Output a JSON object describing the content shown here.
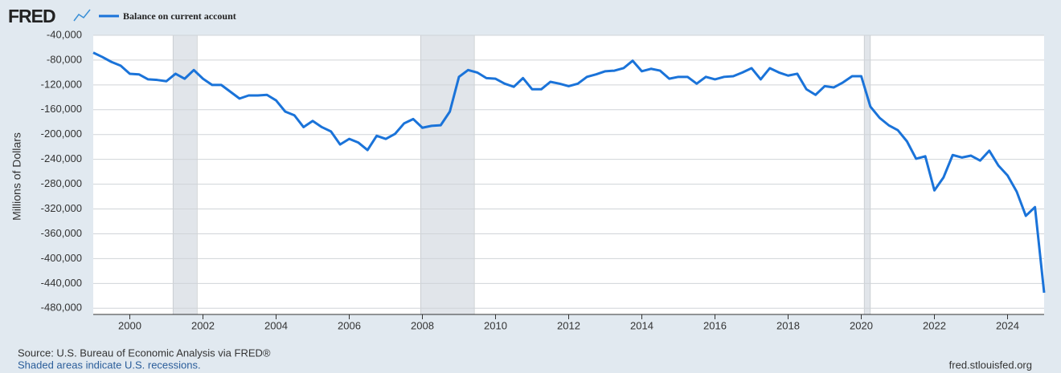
{
  "logo": "FRED",
  "source": "Source: U.S. Bureau of Economic Analysis via FRED®",
  "note": "Shaded areas indicate U.S. recessions.",
  "url": "fred.stlouisfed.org",
  "chart_data": {
    "type": "line",
    "y_label": "Millions of Dollars",
    "xlim": [
      1999,
      2025
    ],
    "xticks": [
      2000,
      2002,
      2004,
      2006,
      2008,
      2010,
      2012,
      2014,
      2016,
      2018,
      2020,
      2022,
      2024
    ],
    "ylim": [
      -490000,
      -40000
    ],
    "yticks": [
      {
        "value": -40000,
        "label": "-40,000"
      },
      {
        "value": -80000,
        "label": "-80,000"
      },
      {
        "value": -120000,
        "label": "-120,000"
      },
      {
        "value": -160000,
        "label": "-160,000"
      },
      {
        "value": -200000,
        "label": "-200,000"
      },
      {
        "value": -240000,
        "label": "-240,000"
      },
      {
        "value": -280000,
        "label": "-280,000"
      },
      {
        "value": -320000,
        "label": "-320,000"
      },
      {
        "value": -360000,
        "label": "-360,000"
      },
      {
        "value": -400000,
        "label": "-400,000"
      },
      {
        "value": -440000,
        "label": "-440,000"
      },
      {
        "value": -480000,
        "label": "-480,000"
      }
    ],
    "grid": true,
    "recessions": [
      [
        2001.18,
        2001.84
      ],
      [
        2007.95,
        2009.42
      ],
      [
        2020.08,
        2020.25
      ]
    ],
    "recession_color": "#e1e5ea",
    "x": [
      1999,
      1999.25,
      1999.5,
      1999.75,
      2000,
      2000.25,
      2000.5,
      2000.75,
      2001,
      2001.25,
      2001.5,
      2001.75,
      2002,
      2002.25,
      2002.5,
      2002.75,
      2003,
      2003.25,
      2003.5,
      2003.75,
      2004,
      2004.25,
      2004.5,
      2004.75,
      2005,
      2005.25,
      2005.5,
      2005.75,
      2006,
      2006.25,
      2006.5,
      2006.75,
      2007,
      2007.25,
      2007.5,
      2007.75,
      2008,
      2008.25,
      2008.5,
      2008.75,
      2009,
      2009.25,
      2009.5,
      2009.75,
      2010,
      2010.25,
      2010.5,
      2010.75,
      2011,
      2011.25,
      2011.5,
      2011.75,
      2012,
      2012.25,
      2012.5,
      2012.75,
      2013,
      2013.25,
      2013.5,
      2013.75,
      2014,
      2014.25,
      2014.5,
      2014.75,
      2015,
      2015.25,
      2015.5,
      2015.75,
      2016,
      2016.25,
      2016.5,
      2016.75,
      2017,
      2017.25,
      2017.5,
      2017.75,
      2018,
      2018.25,
      2018.5,
      2018.75,
      2019,
      2019.25,
      2019.5,
      2019.75,
      2020,
      2020.25,
      2020.5,
      2020.75,
      2021,
      2021.25,
      2021.5,
      2021.75,
      2022,
      2022.25,
      2022.5,
      2022.75,
      2023,
      2023.25,
      2023.5,
      2023.75,
      2024,
      2024.25,
      2024.5,
      2024.75,
      2025
    ],
    "series": [
      {
        "name": "Balance on current account",
        "color": "#1a73d9",
        "values": [
          -68000,
          -75000,
          -83000,
          -89000,
          -102000,
          -103000,
          -111000,
          -112000,
          -114000,
          -102000,
          -110000,
          -96000,
          -110000,
          -120000,
          -120000,
          -131000,
          -142000,
          -137000,
          -137000,
          -136000,
          -145000,
          -163000,
          -169000,
          -188000,
          -178000,
          -188000,
          -195000,
          -216000,
          -207000,
          -213000,
          -225000,
          -202000,
          -207000,
          -199000,
          -182000,
          -175000,
          -189000,
          -186000,
          -185000,
          -163000,
          -107000,
          -96000,
          -100000,
          -109000,
          -110000,
          -118000,
          -123000,
          -109000,
          -127000,
          -127000,
          -115000,
          -118000,
          -122000,
          -118000,
          -107000,
          -103000,
          -98000,
          -97000,
          -93000,
          -81000,
          -98000,
          -94000,
          -97000,
          -110000,
          -107000,
          -107000,
          -118000,
          -107000,
          -111000,
          -107000,
          -106000,
          -100000,
          -93000,
          -111000,
          -93000,
          -100000,
          -105000,
          -102000,
          -127000,
          -136000,
          -122000,
          -124000,
          -116000,
          -106000,
          -106000,
          -155000,
          -173000,
          -185000,
          -193000,
          -211000,
          -239000,
          -235000,
          -290000,
          -269000,
          -233000,
          -237000,
          -234000,
          -242000,
          -226000,
          -250000,
          -266000,
          -292000,
          -331000,
          -317000,
          -455000
        ]
      }
    ]
  }
}
